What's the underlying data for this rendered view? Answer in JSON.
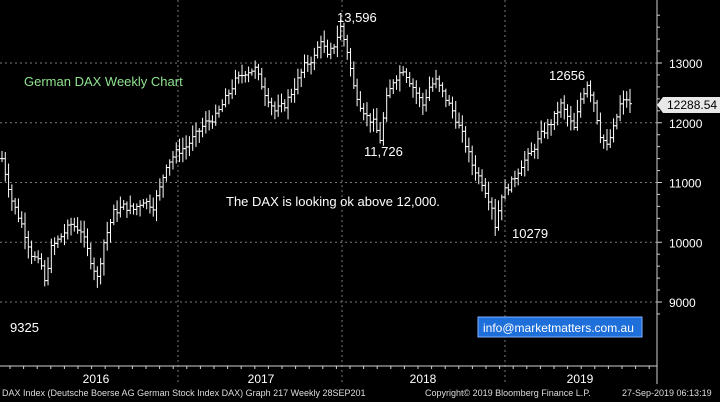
{
  "chart_data": {
    "type": "ohlc",
    "title": "German DAX Weekly Chart",
    "xlabel": "",
    "ylabel": "",
    "ylim": [
      8600,
      14200
    ],
    "yticks": [
      9000,
      10000,
      11000,
      12000,
      13000
    ],
    "xticks": [
      "2016",
      "2017",
      "2018",
      "2019"
    ],
    "last_price": "12288.54",
    "grid": true,
    "bar_color": "#ffffff",
    "accent_color": "#ffffff",
    "annotations": {
      "high_2018": "13,596",
      "low_2016": "9325",
      "low_2018": "11,726",
      "low_2019": "10279",
      "high_2019": "12656",
      "comment": "The DAX is looking ok above 12,000.",
      "contact": "info@marketmatters.com.au"
    },
    "anchors": [
      [
        0,
        11400
      ],
      [
        3,
        10700
      ],
      [
        6,
        10300
      ],
      [
        9,
        9800
      ],
      [
        12,
        9600
      ],
      [
        13,
        9325
      ],
      [
        15,
        9900
      ],
      [
        18,
        10100
      ],
      [
        21,
        10300
      ],
      [
        24,
        10200
      ],
      [
        27,
        9700
      ],
      [
        29,
        9400
      ],
      [
        31,
        10000
      ],
      [
        34,
        10500
      ],
      [
        37,
        10600
      ],
      [
        40,
        10550
      ],
      [
        43,
        10700
      ],
      [
        46,
        10600
      ],
      [
        48,
        10900
      ],
      [
        50,
        11300
      ],
      [
        53,
        11500
      ],
      [
        56,
        11600
      ],
      [
        59,
        11800
      ],
      [
        62,
        12000
      ],
      [
        65,
        12100
      ],
      [
        68,
        12400
      ],
      [
        71,
        12700
      ],
      [
        74,
        12850
      ],
      [
        77,
        12900
      ],
      [
        80,
        12500
      ],
      [
        83,
        12200
      ],
      [
        86,
        12300
      ],
      [
        89,
        12600
      ],
      [
        92,
        12950
      ],
      [
        95,
        13100
      ],
      [
        97,
        13400
      ],
      [
        99,
        13100
      ],
      [
        101,
        13300
      ],
      [
        103,
        13596
      ],
      [
        105,
        13200
      ],
      [
        107,
        12600
      ],
      [
        109,
        12300
      ],
      [
        111,
        12100
      ],
      [
        113,
        12000
      ],
      [
        115,
        11726
      ],
      [
        117,
        12400
      ],
      [
        119,
        12700
      ],
      [
        122,
        12900
      ],
      [
        124,
        12700
      ],
      [
        126,
        12500
      ],
      [
        128,
        12300
      ],
      [
        130,
        12600
      ],
      [
        132,
        12700
      ],
      [
        134,
        12500
      ],
      [
        137,
        12200
      ],
      [
        140,
        11800
      ],
      [
        143,
        11300
      ],
      [
        146,
        11000
      ],
      [
        149,
        10600
      ],
      [
        150,
        10279
      ],
      [
        152,
        10800
      ],
      [
        155,
        11000
      ],
      [
        158,
        11300
      ],
      [
        161,
        11500
      ],
      [
        164,
        11800
      ],
      [
        167,
        12000
      ],
      [
        170,
        12300
      ],
      [
        172,
        12100
      ],
      [
        174,
        11900
      ],
      [
        176,
        12400
      ],
      [
        178,
        12656
      ],
      [
        180,
        12350
      ],
      [
        182,
        11800
      ],
      [
        184,
        11600
      ],
      [
        186,
        11900
      ],
      [
        188,
        12300
      ],
      [
        190,
        12400
      ],
      [
        191,
        12288.54
      ]
    ]
  },
  "footer": {
    "left": "DAX Index (Deutsche Boerse AG German Stock Index DAX) Graph 217  Weekly 28SEP201",
    "mid": "Copyright© 2019 Bloomberg Finance L.P.",
    "right": "27-Sep-2019 06:13:19"
  }
}
